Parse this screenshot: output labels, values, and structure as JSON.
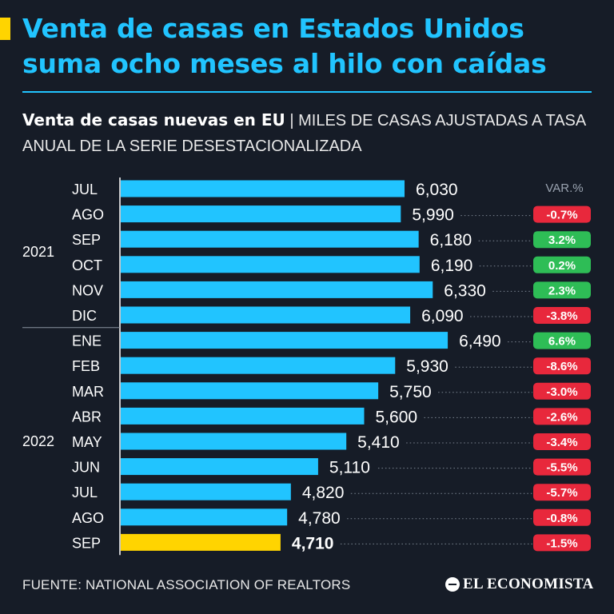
{
  "headline": "Venta de casas en Estados Unidos suma ocho meses al hilo con caídas",
  "subtitle": {
    "title": "Venta de casas nuevas en EU",
    "separator": "|",
    "description": "MILES DE CASAS AJUSTADAS A TASA ANUAL DE LA SERIE DESESTACIONALIZADA"
  },
  "var_header": "VAR.%",
  "source": "FUENTE: NATIONAL ASSOCIATION OF REALTORS",
  "logo": "EL ECONOMISTA",
  "colors": {
    "background": "#161c27",
    "bar": "#21c4ff",
    "highlight_bar": "#ffd400",
    "positive": "#2ebd56",
    "negative": "#e8283c"
  },
  "chart_data": {
    "type": "bar",
    "orientation": "horizontal",
    "year_groups": [
      {
        "label": "2021",
        "months": [
          "JUL",
          "AGO",
          "SEP",
          "OCT",
          "NOV",
          "DIC"
        ]
      },
      {
        "label": "2022",
        "months": [
          "ENE",
          "FEB",
          "MAR",
          "ABR",
          "MAY",
          "JUN",
          "JUL",
          "AGO",
          "SEP"
        ]
      }
    ],
    "categories": [
      "JUL",
      "AGO",
      "SEP",
      "OCT",
      "NOV",
      "DIC",
      "ENE",
      "FEB",
      "MAR",
      "ABR",
      "MAY",
      "JUN",
      "JUL",
      "AGO",
      "SEP"
    ],
    "values": [
      6030,
      5990,
      6180,
      6190,
      6330,
      6090,
      6490,
      5930,
      5750,
      5600,
      5410,
      5110,
      4820,
      4780,
      4710
    ],
    "value_labels": [
      "6,030",
      "5,990",
      "6,180",
      "6,190",
      "6,330",
      "6,090",
      "6,490",
      "5,930",
      "5,750",
      "5,600",
      "5,410",
      "5,110",
      "4,820",
      "4,780",
      "4,710"
    ],
    "var_pct": [
      null,
      -0.7,
      3.2,
      0.2,
      2.3,
      -3.8,
      6.6,
      -8.6,
      -3.0,
      -2.6,
      -3.4,
      -5.5,
      -5.7,
      -0.8,
      -1.5
    ],
    "var_labels": [
      "",
      "-0.7%",
      "3.2%",
      "0.2%",
      "2.3%",
      "-3.8%",
      "6.6%",
      "-8.6%",
      "-3.0%",
      "-2.6%",
      "-3.4%",
      "-5.5%",
      "-5.7%",
      "-0.8%",
      "-1.5%"
    ],
    "highlight_index": 14,
    "xlim": [
      3000,
      7000
    ]
  }
}
